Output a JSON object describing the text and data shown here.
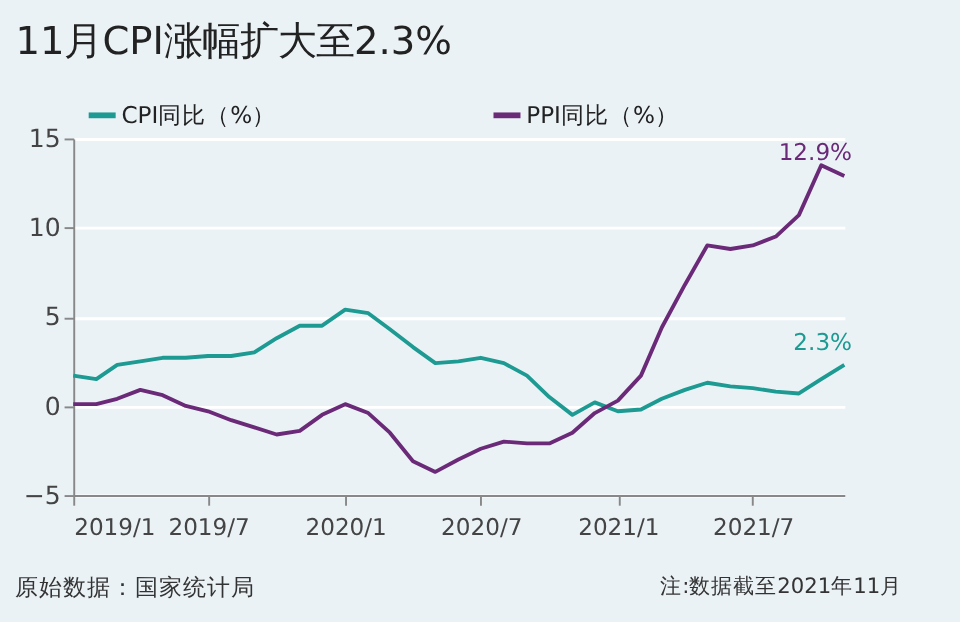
{
  "chart_data": {
    "type": "line",
    "title": "11月CPI涨幅扩大至2.3%",
    "x": [
      "2019-01",
      "2019-02",
      "2019-03",
      "2019-04",
      "2019-05",
      "2019-06",
      "2019-07",
      "2019-08",
      "2019-09",
      "2019-10",
      "2019-11",
      "2019-12",
      "2020-01",
      "2020-02",
      "2020-03",
      "2020-04",
      "2020-05",
      "2020-06",
      "2020-07",
      "2020-08",
      "2020-09",
      "2020-10",
      "2020-11",
      "2020-12",
      "2021-01",
      "2021-02",
      "2021-03",
      "2021-04",
      "2021-05",
      "2021-06",
      "2021-07",
      "2021-08",
      "2021-09",
      "2021-10",
      "2021-11"
    ],
    "series": [
      {
        "name": "CPI同比（%）",
        "color": "#1d9a92",
        "values": [
          1.7,
          1.5,
          2.3,
          2.5,
          2.7,
          2.7,
          2.8,
          2.8,
          3.0,
          3.8,
          4.5,
          4.5,
          5.4,
          5.2,
          4.3,
          3.3,
          2.4,
          2.5,
          2.7,
          2.4,
          1.7,
          0.5,
          -0.5,
          0.2,
          -0.3,
          -0.2,
          0.4,
          0.9,
          1.3,
          1.1,
          1.0,
          0.8,
          0.7,
          1.5,
          2.3
        ]
      },
      {
        "name": "PPI同比（%）",
        "color": "#6b2a78",
        "values": [
          0.1,
          0.1,
          0.4,
          0.9,
          0.6,
          0.0,
          -0.3,
          -0.8,
          -1.2,
          -1.6,
          -1.4,
          -0.5,
          0.1,
          -0.4,
          -1.5,
          -3.1,
          -3.7,
          -3.0,
          -2.4,
          -2.0,
          -2.1,
          -2.1,
          -1.5,
          -0.4,
          0.3,
          1.7,
          4.4,
          6.8,
          9.0,
          8.8,
          9.0,
          9.5,
          10.7,
          13.5,
          12.9
        ]
      }
    ],
    "xlim": [
      "2019-01",
      "2021-11"
    ],
    "xticks": [
      {
        "value": "2019-01",
        "label": "2019/1"
      },
      {
        "value": "2019-07",
        "label": "2019/7"
      },
      {
        "value": "2020-01",
        "label": "2020/1"
      },
      {
        "value": "2020-07",
        "label": "2020/7"
      },
      {
        "value": "2021-01",
        "label": "2021/1"
      },
      {
        "value": "2021-07",
        "label": "2021/7"
      }
    ],
    "ylim": [
      -5,
      15
    ],
    "yticks": [
      -5,
      0,
      5,
      10,
      15
    ],
    "grid": "y",
    "legend": "top",
    "marker": "none",
    "line_style": "solid",
    "annotations": [
      {
        "text": "12.9%",
        "x": "2021-11",
        "y": 12.9
      },
      {
        "text": "2.3%",
        "x": "2021-11",
        "y": 2.3
      },
      "原始数据：国家统计局",
      "注:数据截至2021年11月"
    ]
  }
}
